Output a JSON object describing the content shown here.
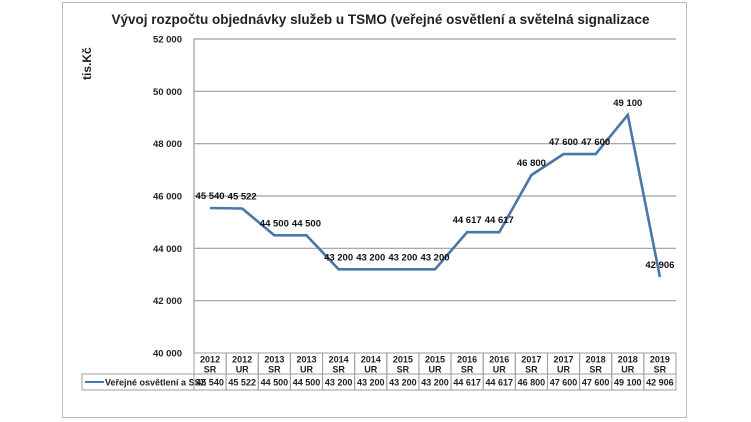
{
  "chart_data": {
    "type": "line",
    "title": "Vývoj rozpočtu objednávky služeb u TSMO (veřejné osvětlení a světelná signalizace",
    "ylabel": "tis.Kč",
    "xlabel": "",
    "ylim": [
      40000,
      52000
    ],
    "yticks": [
      40000,
      42000,
      44000,
      46000,
      48000,
      50000,
      52000
    ],
    "ytick_labels": [
      "40 000",
      "42 000",
      "44 000",
      "46 000",
      "48 000",
      "50 000",
      "52 000"
    ],
    "grid": true,
    "legend_position": "data-table-bottom",
    "categories": [
      {
        "year": "2012",
        "type": "SR"
      },
      {
        "year": "2012",
        "type": "UR"
      },
      {
        "year": "2013",
        "type": "SR"
      },
      {
        "year": "2013",
        "type": "UR"
      },
      {
        "year": "2014",
        "type": "SR"
      },
      {
        "year": "2014",
        "type": "UR"
      },
      {
        "year": "2015",
        "type": "SR"
      },
      {
        "year": "2015",
        "type": "UR"
      },
      {
        "year": "2016",
        "type": "SR"
      },
      {
        "year": "2016",
        "type": "UR"
      },
      {
        "year": "2017",
        "type": "SR"
      },
      {
        "year": "2017",
        "type": "UR"
      },
      {
        "year": "2018",
        "type": "SR"
      },
      {
        "year": "2018",
        "type": "UR"
      },
      {
        "year": "2019",
        "type": "SR"
      }
    ],
    "series": [
      {
        "name": "Veřejné osvětlení a SSZ",
        "color": "#4a76a8",
        "values": [
          45540,
          45522,
          44500,
          44500,
          43200,
          43200,
          43200,
          43200,
          44617,
          44617,
          46800,
          47600,
          47600,
          49100,
          42906
        ],
        "labels": [
          "45 540",
          "45 522",
          "44 500",
          "44 500",
          "43 200",
          "43 200",
          "43 200",
          "43 200",
          "44 617",
          "44 617",
          "46 800",
          "47 600",
          "47 600",
          "49 100",
          "42 906"
        ]
      }
    ]
  },
  "colors": {
    "grid": "#9e9e9e",
    "axis": "#9e9e9e",
    "table_border": "#9e9e9e",
    "frame": "#b9b9b9"
  }
}
